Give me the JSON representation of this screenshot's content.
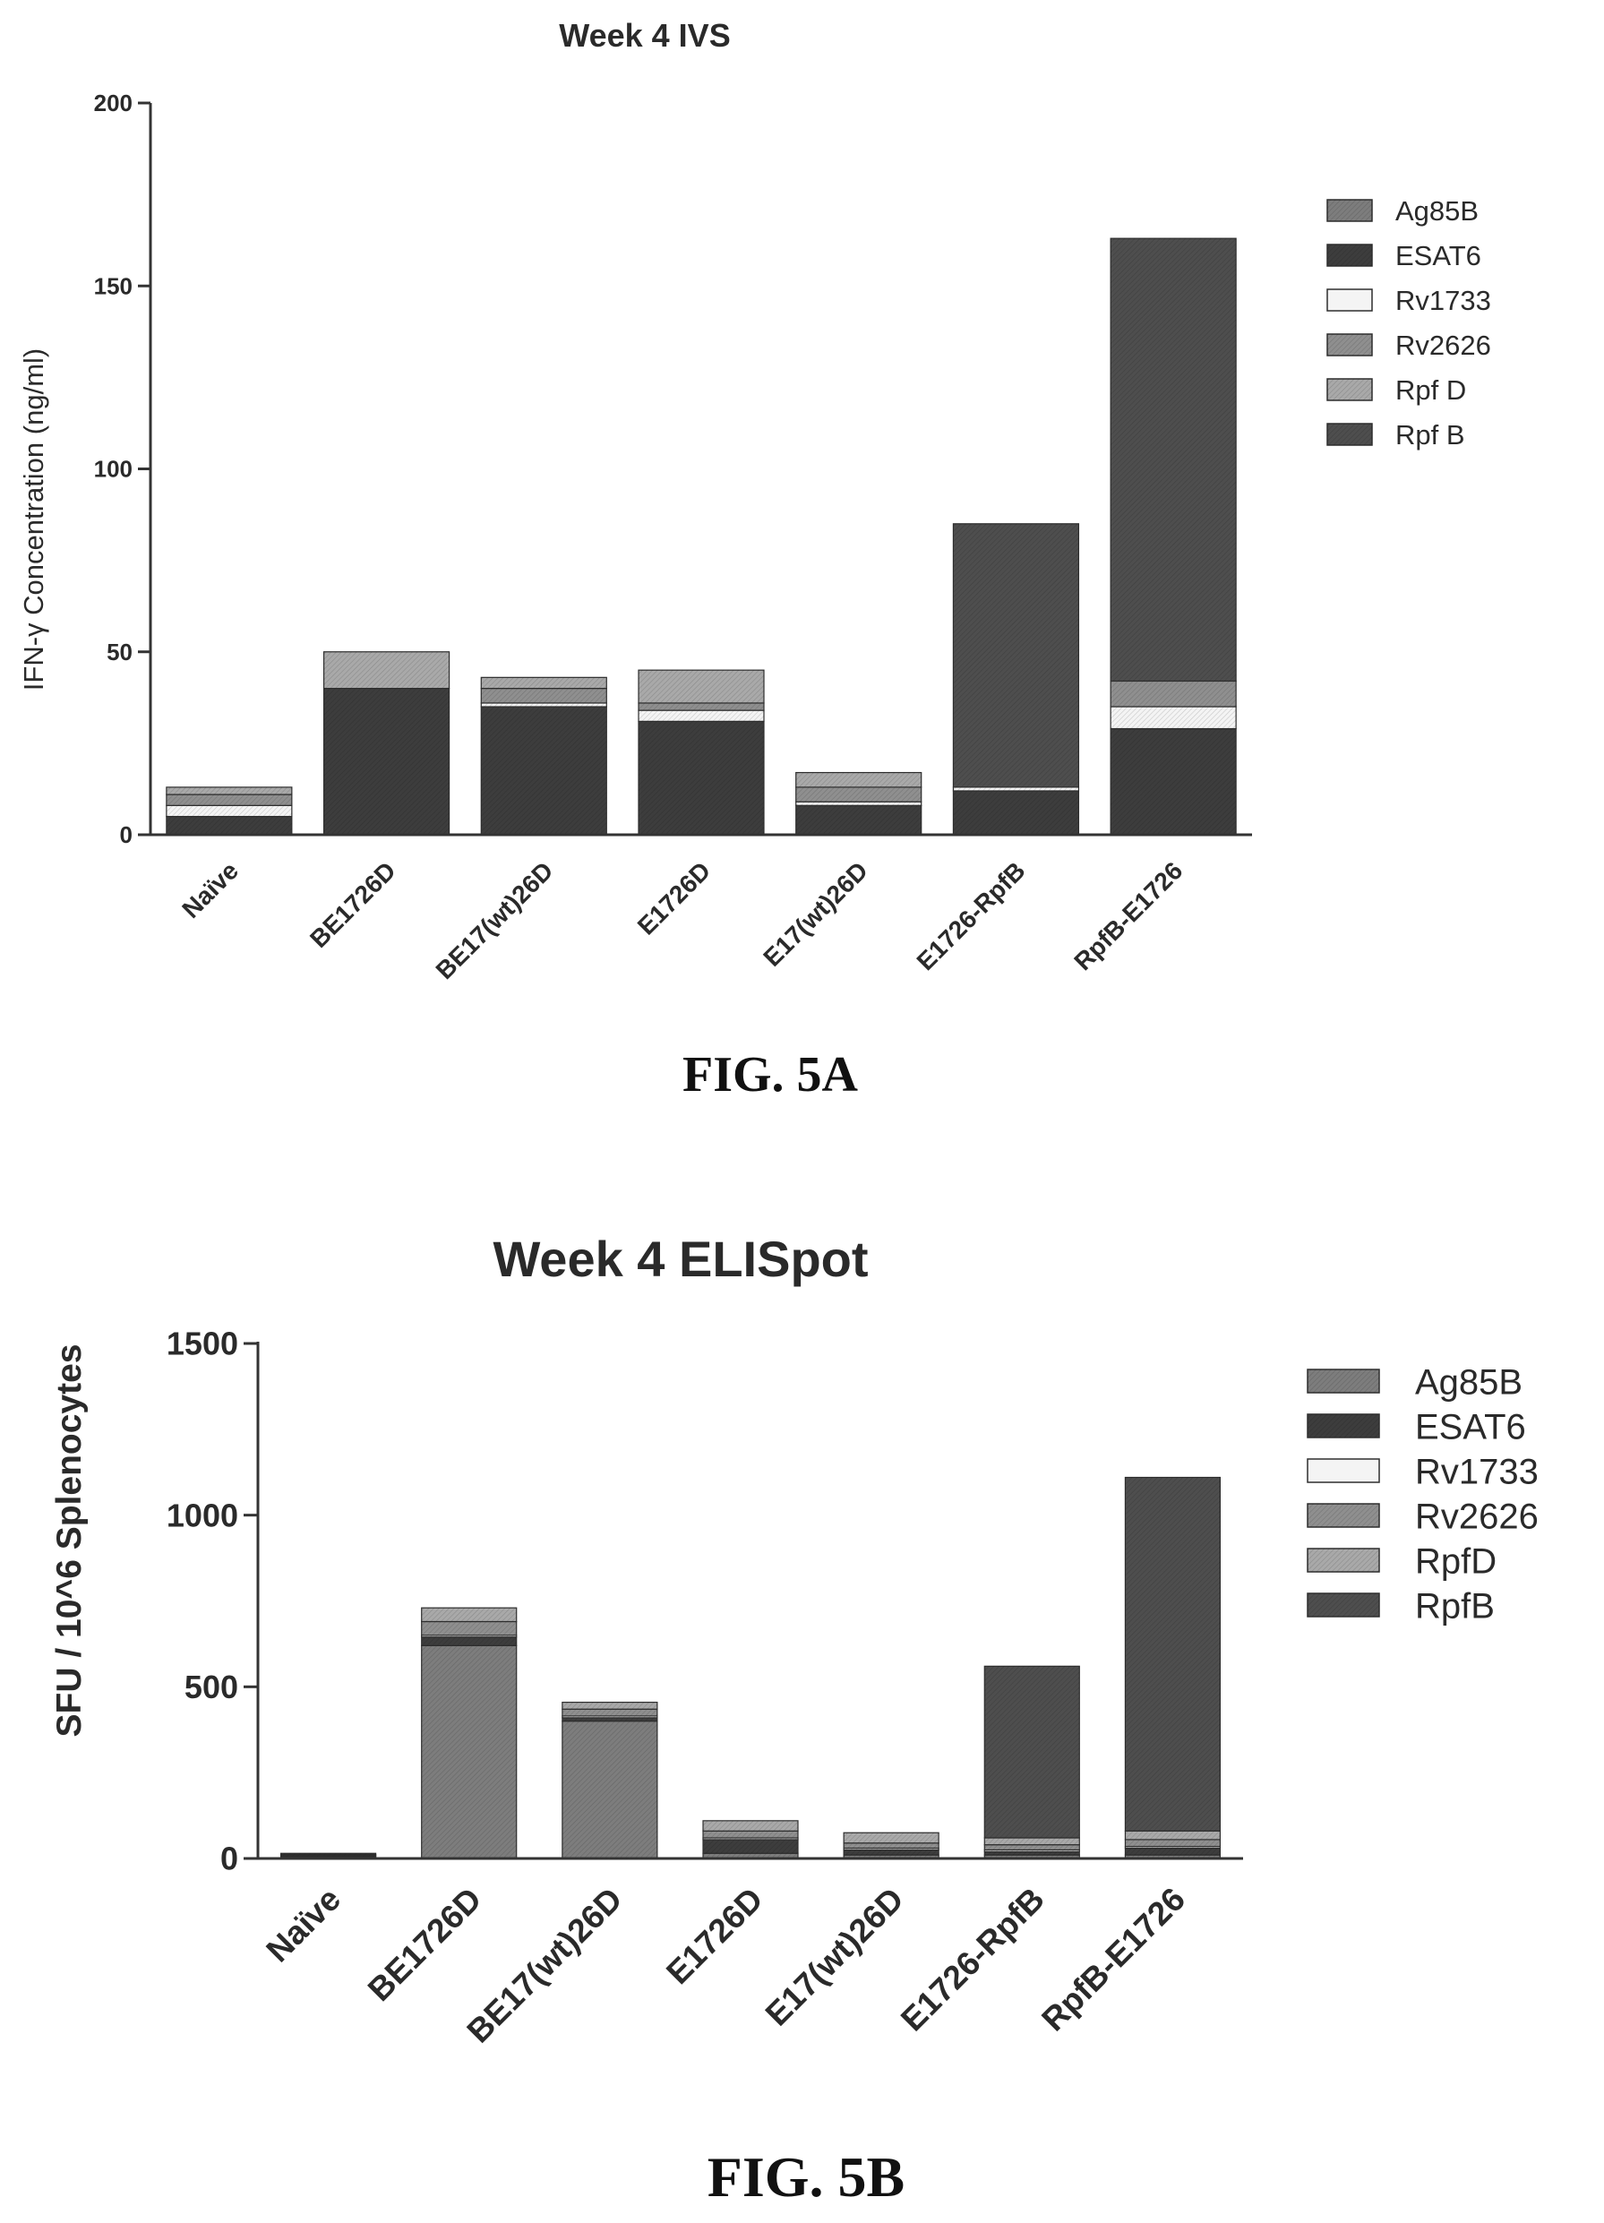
{
  "figures": [
    {
      "label": "FIG. 5A"
    },
    {
      "label": "FIG. 5B"
    }
  ],
  "colors": {
    "ink": "#2a2a2a",
    "frame": "#333333",
    "Ag85B": "#7d7d7d",
    "ESAT6": "#3d3d3d",
    "Rv1733": "#f4f4f4",
    "Rv2626": "#8f8f8f",
    "RpfD": "#a9a9a9",
    "RpfB": "#4e4e4e"
  },
  "chart_data": [
    {
      "type": "bar",
      "stacked": true,
      "title": "Week 4 IVS",
      "xlabel": "",
      "ylabel": "IFN-γ Concentration (ng/ml)",
      "ylim": [
        0,
        200
      ],
      "yticks": [
        0,
        50,
        100,
        150,
        200
      ],
      "legend_position": "right",
      "categories": [
        "Naïve",
        "BE1726D",
        "BE17(wt)26D",
        "E1726D",
        "E17(wt)26D",
        "E1726-RpfB",
        "RpfB-E1726"
      ],
      "series": [
        {
          "name": "Ag85B",
          "values": [
            0,
            0,
            0,
            0,
            0,
            0,
            0
          ]
        },
        {
          "name": "ESAT6",
          "values": [
            5,
            40,
            35,
            31,
            8,
            12,
            29
          ]
        },
        {
          "name": "Rv1733",
          "values": [
            3,
            0,
            1,
            3,
            1,
            1,
            6
          ]
        },
        {
          "name": "Rv2626",
          "values": [
            3,
            0,
            4,
            2,
            4,
            0,
            7
          ]
        },
        {
          "name": "Rpf D",
          "values": [
            2,
            10,
            3,
            9,
            4,
            0,
            0
          ]
        },
        {
          "name": "Rpf B",
          "values": [
            0,
            0,
            0,
            0,
            0,
            72,
            121
          ]
        }
      ]
    },
    {
      "type": "bar",
      "stacked": true,
      "title": "Week 4 ELISpot",
      "xlabel": "",
      "ylabel": "SFU / 10^6 Splenocytes",
      "ylim": [
        0,
        1500
      ],
      "yticks": [
        0,
        500,
        1000,
        1500
      ],
      "legend_position": "right",
      "categories": [
        "Naïve",
        "BE1726D",
        "BE17(wt)26D",
        "E1726D",
        "E17(wt)26D",
        "E1726-RpfB",
        "RpfB-E1726"
      ],
      "series": [
        {
          "name": "Ag85B",
          "values": [
            5,
            620,
            400,
            15,
            10,
            10,
            10
          ]
        },
        {
          "name": "ESAT6",
          "values": [
            3,
            25,
            10,
            40,
            15,
            10,
            20
          ]
        },
        {
          "name": "Rv1733",
          "values": [
            1,
            5,
            5,
            5,
            5,
            5,
            5
          ]
        },
        {
          "name": "Rv2626",
          "values": [
            3,
            40,
            20,
            20,
            15,
            15,
            20
          ]
        },
        {
          "name": "RpfD",
          "values": [
            3,
            40,
            20,
            30,
            30,
            20,
            25
          ]
        },
        {
          "name": "RpfB",
          "values": [
            0,
            0,
            0,
            0,
            0,
            500,
            1030
          ]
        }
      ]
    }
  ]
}
